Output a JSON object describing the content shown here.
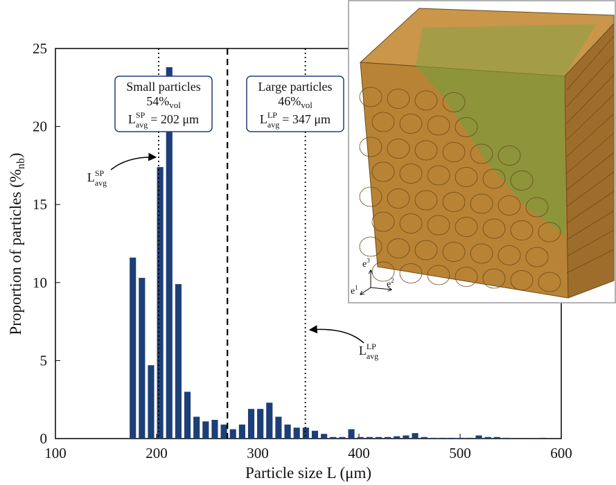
{
  "chart_data": {
    "type": "histogram",
    "bins": [
      172,
      181,
      190,
      199,
      208,
      217,
      226,
      235,
      244,
      253,
      262,
      271,
      280,
      289,
      298,
      307,
      316,
      325,
      334,
      343,
      352,
      361,
      370,
      379,
      388,
      397,
      406,
      415,
      424,
      433,
      442,
      451,
      460,
      469,
      478,
      487,
      496,
      505,
      514,
      523,
      532,
      541,
      550,
      559,
      568,
      577,
      586
    ],
    "values": [
      11.6,
      10.3,
      4.7,
      17.4,
      23.8,
      9.9,
      3.0,
      1.4,
      1.1,
      1.2,
      0.9,
      0.6,
      0.9,
      1.9,
      1.9,
      2.3,
      1.4,
      0.9,
      0.7,
      0.7,
      0.5,
      0.3,
      0.1,
      0.1,
      0.6,
      0.1,
      0.1,
      0.1,
      0.1,
      0.15,
      0.2,
      0.35,
      0.1,
      0.05,
      0.05,
      0.05,
      0.05,
      0.05,
      0.2,
      0.1,
      0.1,
      0.05,
      0,
      0,
      0,
      0.05
    ],
    "color": "#1d3f78",
    "xlim": [
      100,
      600
    ],
    "ylim": [
      0,
      25
    ],
    "xticks": [
      100,
      200,
      300,
      400,
      500,
      600
    ],
    "yticks": [
      0,
      5,
      10,
      15,
      20,
      25
    ],
    "x_label": "Particle size L (μm)",
    "y_label": {
      "text": "Proportion of particles (%",
      "sub": "nb",
      "end": ")"
    },
    "separator": 270,
    "groups": [
      {
        "name": "Small particles",
        "share": {
          "value": 54,
          "label": "54%"
        },
        "share_sub": "vol",
        "symbol": "L",
        "symbol_sup": "SP",
        "symbol_sub": "avg",
        "avg": {
          "value": 202,
          "label": "= 202 μm"
        }
      },
      {
        "name": "Large particles",
        "share": {
          "value": 46,
          "label": "46%"
        },
        "share_sub": "vol",
        "symbol": "L",
        "symbol_sup": "LP",
        "symbol_sub": "avg",
        "avg": {
          "value": 347,
          "label": "= 347 μm"
        }
      }
    ]
  },
  "inset": {
    "axes": [
      {
        "base": "e",
        "sup": "3"
      },
      {
        "base": "e",
        "sup": "1"
      },
      {
        "base": "e",
        "sup": "2"
      }
    ]
  }
}
